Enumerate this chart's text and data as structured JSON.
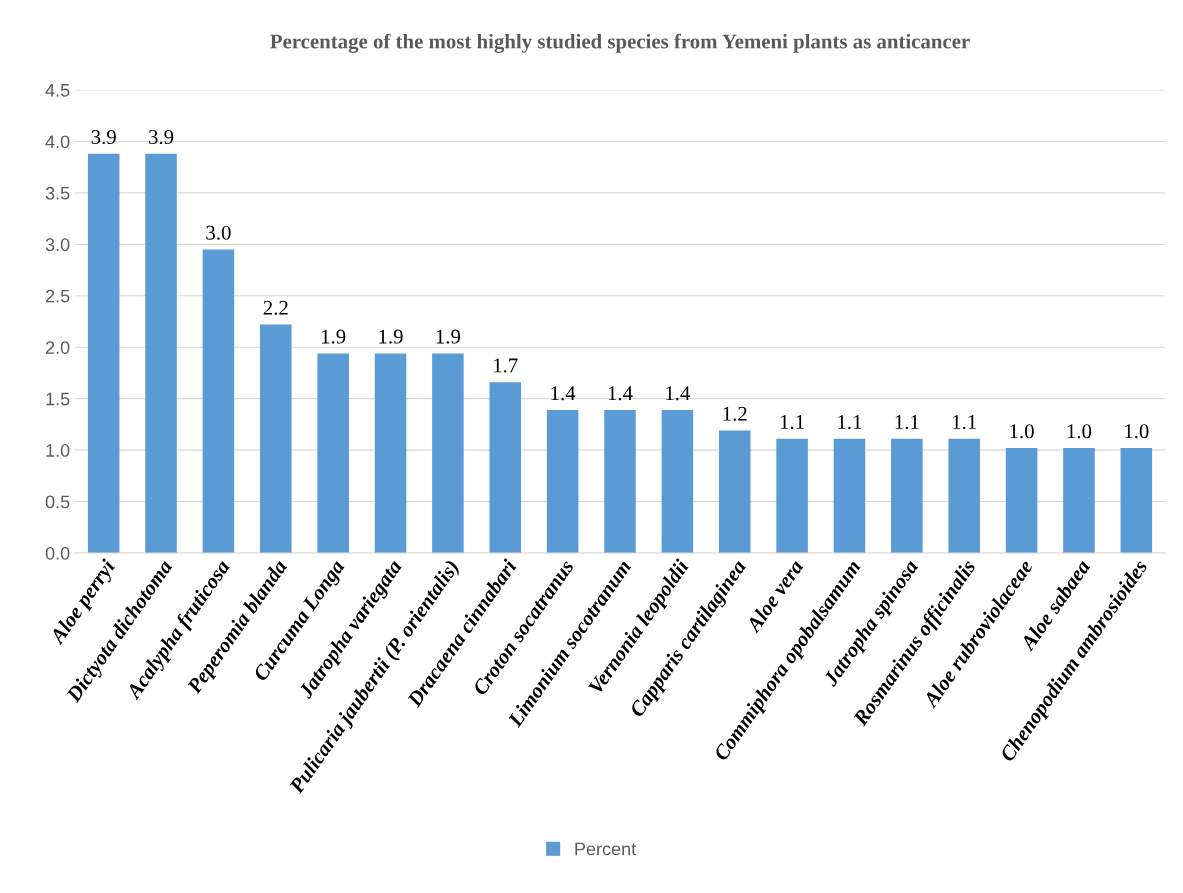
{
  "chart_data": {
    "type": "bar",
    "title": "Percentage of the most highly studied species from Yemeni plants as anticancer",
    "categories": [
      "Aloe perryi",
      "Dictyota dichotoma",
      "Acalypha fruticosa",
      "Peperomia blanda",
      "Curcuma Longa",
      "Jatropha variegata",
      "Pulicaria jaubertii (P. orientalis)",
      "Dracaena cinnabari",
      "Croton socatranus",
      "Limonium socotranum",
      "Vernonia leopoldii",
      "Capparis cartilaginea",
      "Aloe vera",
      "Commiphora opobalsamum",
      "Jatropha spinosa",
      "Rosmarinus officinalis",
      "Aloe rubroviolaceae",
      "Aloe sabaea",
      "Chenopodium ambrosioides"
    ],
    "series": [
      {
        "name": "Percent",
        "color": "#5b9bd5",
        "values": [
          3.88,
          3.88,
          2.95,
          2.22,
          1.94,
          1.94,
          1.94,
          1.66,
          1.39,
          1.39,
          1.39,
          1.19,
          1.11,
          1.11,
          1.11,
          1.11,
          1.02,
          1.02,
          1.02
        ],
        "value_labels": [
          "3.9",
          "3.9",
          "3.0",
          "2.2",
          "1.9",
          "1.9",
          "1.9",
          "1.7",
          "1.4",
          "1.4",
          "1.4",
          "1.2",
          "1.1",
          "1.1",
          "1.1",
          "1.1",
          "1.0",
          "1.0",
          "1.0"
        ]
      }
    ],
    "ylim": [
      0,
      4.5
    ],
    "yticks": [
      {
        "value": 0,
        "label": "0.0"
      },
      {
        "value": 0.5,
        "label": "0.5"
      },
      {
        "value": 1,
        "label": "1.0"
      },
      {
        "value": 1.5,
        "label": "1.5"
      },
      {
        "value": 2,
        "label": "2.0"
      },
      {
        "value": 2.5,
        "label": "2.5"
      },
      {
        "value": 3,
        "label": "3.0"
      },
      {
        "value": 3.5,
        "label": "3.5"
      },
      {
        "value": 4,
        "label": "4.0"
      },
      {
        "value": 4.5,
        "label": "4.5"
      }
    ],
    "grid": "y",
    "legend": "bottom"
  }
}
